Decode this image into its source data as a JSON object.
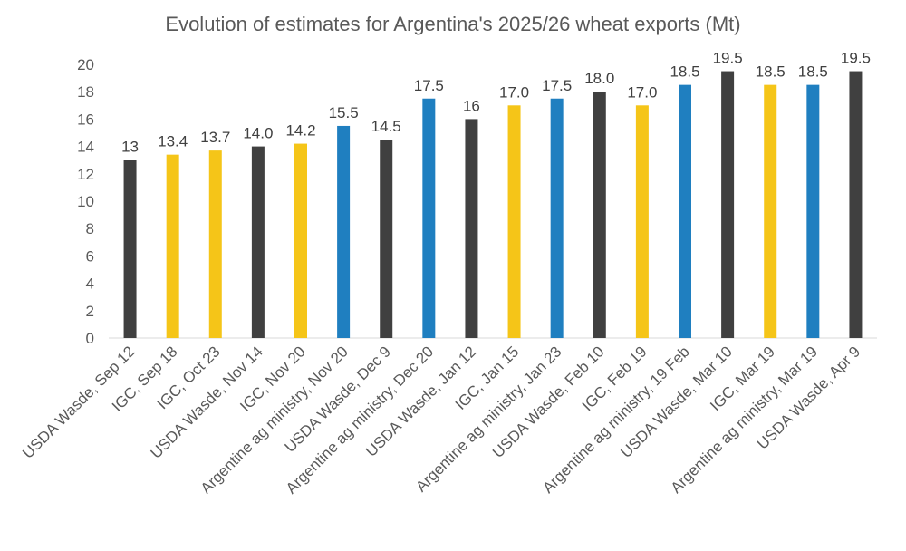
{
  "chart_data": {
    "type": "bar",
    "title": "Evolution of estimates for Argentina's 2025/26 wheat exports (Mt)",
    "xlabel": "",
    "ylabel": "",
    "ylim": [
      0,
      20
    ],
    "yticks": [
      0,
      2,
      4,
      6,
      8,
      10,
      12,
      14,
      16,
      18,
      20
    ],
    "grid": false,
    "legend": "none",
    "categories": [
      "USDA Wasde, Sep 12",
      "IGC, Sep 18",
      "IGC, Oct 23",
      "USDA Wasde, Nov 14",
      "IGC, Nov 20",
      "Argentine ag ministry, Nov 20",
      "USDA Wasde, Dec 9",
      "Argentine ag ministry, Dec 20",
      "USDA Wasde, Jan 12",
      "IGC, Jan 15",
      "Argentine ag ministry, Jan 23",
      "USDA Wasde, Feb 10",
      "IGC, Feb 19",
      "Argentine ag ministry, 19 Feb",
      "USDA Wasde, Mar 10",
      "IGC, Mar 19",
      "Argentine ag ministry, Mar 19",
      "USDA Wasde, Apr 9"
    ],
    "values": [
      13,
      13.4,
      13.7,
      14.0,
      14.2,
      15.5,
      14.5,
      17.5,
      16,
      17.0,
      17.5,
      18.0,
      17.0,
      18.5,
      19.5,
      18.5,
      18.5,
      19.5
    ],
    "data_labels": [
      "13",
      "13.4",
      "13.7",
      "14.0",
      "14.2",
      "15.5",
      "14.5",
      "17.5",
      "16",
      "17.0",
      "17.5",
      "18.0",
      "17.0",
      "18.5",
      "19.5",
      "18.5",
      "18.5",
      "19.5"
    ],
    "source_colors": [
      "#404040",
      "#f5c518",
      "#f5c518",
      "#404040",
      "#f5c518",
      "#1f7fc0",
      "#404040",
      "#1f7fc0",
      "#404040",
      "#f5c518",
      "#1f7fc0",
      "#404040",
      "#f5c518",
      "#1f7fc0",
      "#404040",
      "#f5c518",
      "#1f7fc0",
      "#404040"
    ]
  }
}
